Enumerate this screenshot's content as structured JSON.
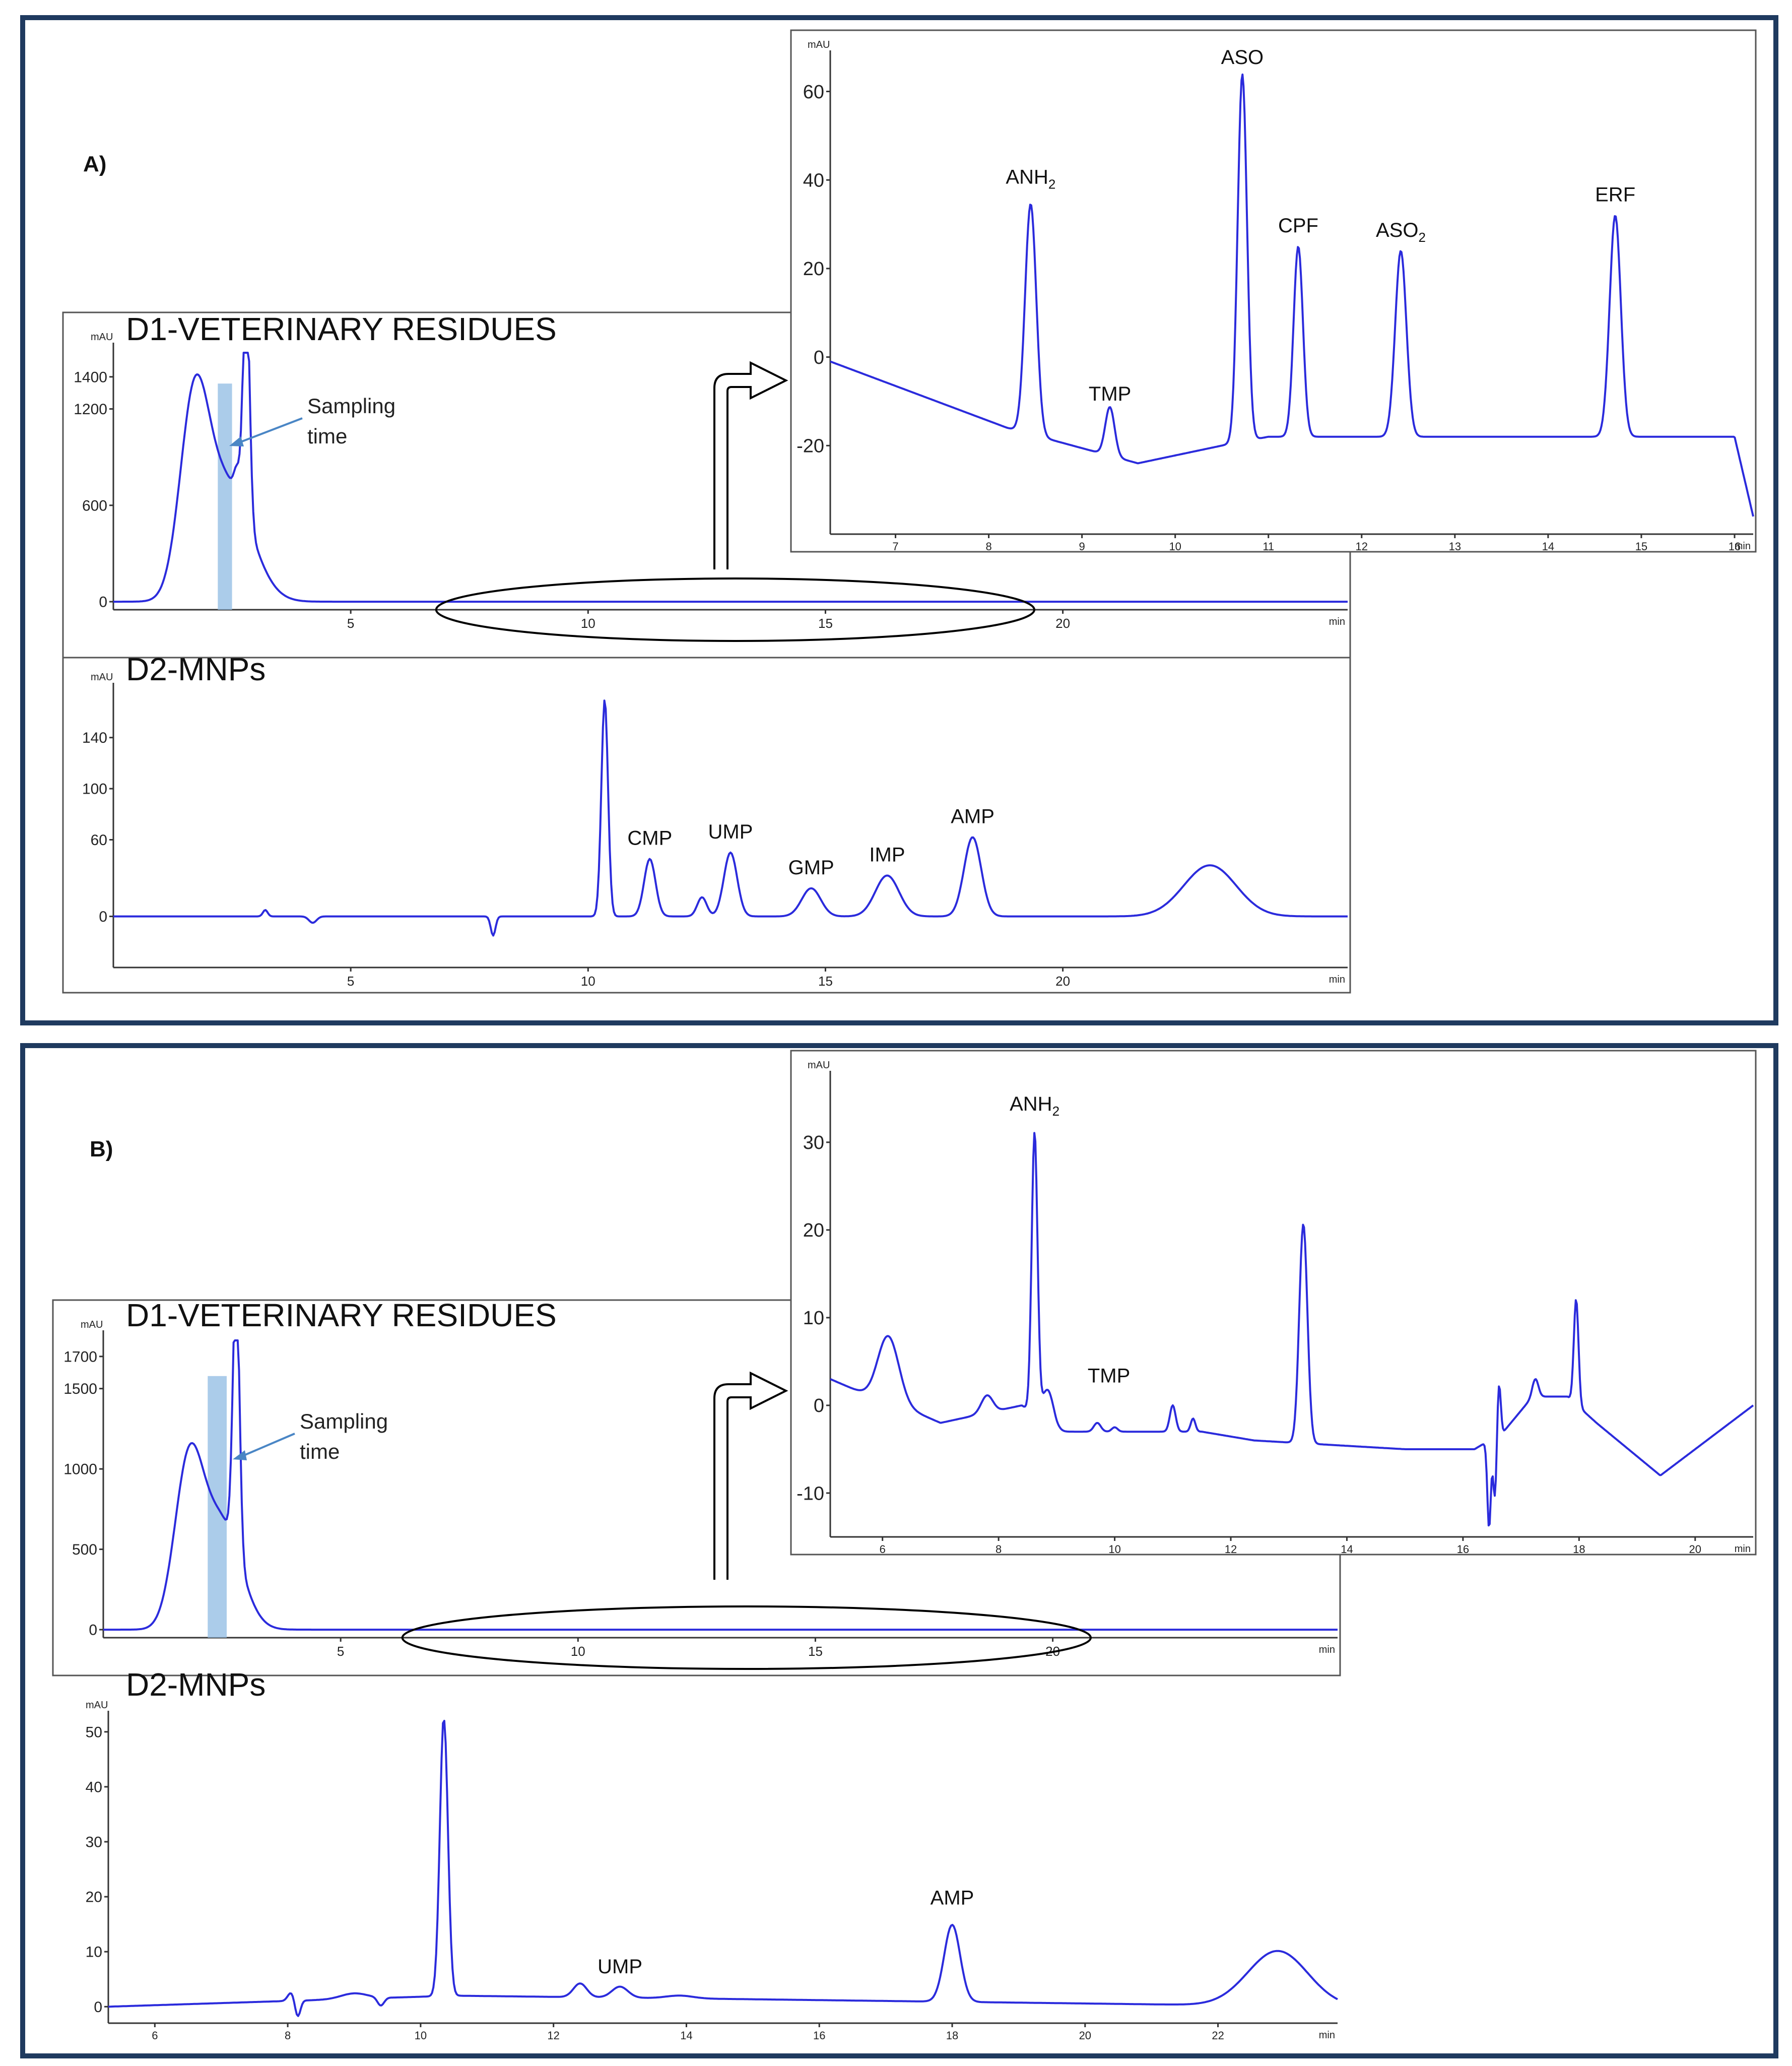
{
  "panels": {
    "a_label": "A)",
    "b_label": "B)"
  },
  "annotations": {
    "sampling_line1": "Sampling",
    "sampling_line2": "time"
  },
  "colors": {
    "trace": "#2b2bdc",
    "sampling_band": "#9cc3e6",
    "frame": "#1f3a5f"
  },
  "chart_data": [
    {
      "id": "A_D1",
      "type": "line",
      "title": "D1-VETERINARY RESIDUES",
      "y_unit": "mAU",
      "x_unit": "min",
      "xlim": [
        0,
        26
      ],
      "ylim": [
        -50,
        1550
      ],
      "xticks": [
        5,
        10,
        15,
        20
      ],
      "yticks": [
        0,
        600,
        1200,
        1400
      ],
      "peaks": [
        [
          1.7,
          1120,
          0.3
        ],
        [
          2.4,
          720,
          0.5
        ],
        [
          2.6,
          150,
          0.06
        ],
        [
          2.8,
          1480,
          0.07
        ]
      ],
      "baseline": [
        [
          0,
          0
        ],
        [
          26,
          0
        ]
      ],
      "sampling_band": [
        2.2,
        2.5
      ],
      "callout_x": [
        6.8,
        19.4
      ]
    },
    {
      "id": "A_D2",
      "type": "line",
      "title": "D2-MNPs",
      "y_unit": "mAU",
      "x_unit": "min",
      "xlim": [
        0,
        26
      ],
      "ylim": [
        -40,
        175
      ],
      "xticks": [
        5,
        10,
        15,
        20
      ],
      "yticks": [
        0,
        60,
        100,
        140
      ],
      "peaks": [
        [
          3.2,
          5,
          0.05
        ],
        [
          4.2,
          -5,
          0.08
        ],
        [
          8.0,
          -15,
          0.05
        ],
        [
          10.35,
          170,
          0.07
        ],
        [
          11.3,
          45,
          0.12
        ],
        [
          12.4,
          15,
          0.1
        ],
        [
          13.0,
          50,
          0.14
        ],
        [
          14.7,
          22,
          0.2
        ],
        [
          16.3,
          32,
          0.25
        ],
        [
          18.1,
          62,
          0.18
        ],
        [
          23.1,
          40,
          0.55
        ]
      ],
      "baseline": [
        [
          0,
          0
        ],
        [
          26,
          0
        ]
      ],
      "labels": [
        {
          "text": "CMP",
          "x": 11.3,
          "y": 45
        },
        {
          "text": "UMP",
          "x": 13.0,
          "y": 50
        },
        {
          "text": "GMP",
          "x": 14.7,
          "y": 22
        },
        {
          "text": "IMP",
          "x": 16.3,
          "y": 32
        },
        {
          "text": "AMP",
          "x": 18.1,
          "y": 62
        }
      ]
    },
    {
      "id": "A_zoom",
      "type": "line",
      "y_unit": "mAU",
      "x_unit": "min",
      "xlim": [
        6.3,
        16.2
      ],
      "ylim": [
        -40,
        67
      ],
      "xticks": [
        7,
        8,
        9,
        10,
        11,
        12,
        13,
        14,
        15,
        16
      ],
      "yticks": [
        -20,
        0,
        20,
        40,
        60
      ],
      "baseline": [
        [
          6.3,
          -1
        ],
        [
          8.2,
          -16
        ],
        [
          9.6,
          -24
        ],
        [
          10.5,
          -20
        ],
        [
          11.0,
          -18
        ],
        [
          16.0,
          -18
        ],
        [
          16.2,
          -36
        ]
      ],
      "peaks": [
        [
          8.45,
          52,
          0.06
        ],
        [
          9.3,
          11,
          0.05
        ],
        [
          10.72,
          83,
          0.05
        ],
        [
          11.32,
          43,
          0.05
        ],
        [
          12.42,
          42,
          0.06
        ],
        [
          14.72,
          50,
          0.06
        ]
      ],
      "labels": [
        {
          "text": "ANH",
          "sub": "2",
          "x": 8.45,
          "y": 36
        },
        {
          "text": "TMP",
          "x": 9.3,
          "y": -13
        },
        {
          "text": "ASO",
          "x": 10.72,
          "y": 63
        },
        {
          "text": "CPF",
          "x": 11.32,
          "y": 25
        },
        {
          "text": "ASO",
          "sub": "2",
          "x": 12.42,
          "y": 24
        },
        {
          "text": "ERF",
          "x": 14.72,
          "y": 32
        }
      ]
    },
    {
      "id": "B_D1",
      "type": "line",
      "title": "D1-VETERINARY RESIDUES",
      "y_unit": "mAU",
      "x_unit": "min",
      "xlim": [
        0,
        26
      ],
      "ylim": [
        -50,
        1800
      ],
      "xticks": [
        5,
        10,
        15,
        20
      ],
      "yticks": [
        0,
        500,
        1000,
        1500,
        1700
      ],
      "peaks": [
        [
          1.8,
          1000,
          0.3
        ],
        [
          2.5,
          650,
          0.4
        ],
        [
          2.8,
          1700,
          0.07
        ]
      ],
      "baseline": [
        [
          0,
          0
        ],
        [
          26,
          0
        ]
      ],
      "sampling_band": [
        2.2,
        2.6
      ],
      "callout_x": [
        6.3,
        20.8
      ]
    },
    {
      "id": "B_D2",
      "type": "line",
      "title": "D2-MNPs",
      "y_unit": "mAU",
      "x_unit": "min",
      "xlim": [
        5.3,
        23.8
      ],
      "ylim": [
        -3,
        52
      ],
      "xticks": [
        6,
        8,
        10,
        12,
        14,
        16,
        18,
        20,
        22
      ],
      "yticks": [
        0,
        10,
        20,
        30,
        40,
        50
      ],
      "baseline": [
        [
          5.3,
          0
        ],
        [
          10.5,
          2
        ],
        [
          14,
          1.5
        ],
        [
          23.8,
          0
        ]
      ],
      "peaks": [
        [
          8.05,
          1.5,
          0.05
        ],
        [
          8.15,
          -3,
          0.04
        ],
        [
          9.0,
          1,
          0.2
        ],
        [
          9.4,
          -1.5,
          0.05
        ],
        [
          10.35,
          51,
          0.06
        ],
        [
          12.4,
          2.5,
          0.1
        ],
        [
          13.0,
          2,
          0.12
        ],
        [
          13.9,
          0.5,
          0.2
        ],
        [
          18.0,
          14,
          0.12
        ],
        [
          22.9,
          10,
          0.45
        ]
      ],
      "labels": [
        {
          "text": "UMP",
          "x": 13.0,
          "y": 3.5
        },
        {
          "text": "AMP",
          "x": 18.0,
          "y": 16
        }
      ]
    },
    {
      "id": "B_zoom",
      "type": "line",
      "y_unit": "mAU",
      "x_unit": "min",
      "xlim": [
        5.1,
        21.0
      ],
      "ylim": [
        -15,
        37
      ],
      "xticks": [
        6,
        8,
        10,
        12,
        14,
        16,
        18,
        20
      ],
      "yticks": [
        -10,
        0,
        10,
        20,
        30
      ],
      "baseline": [
        [
          5.1,
          3
        ],
        [
          5.8,
          1
        ],
        [
          6.3,
          0
        ],
        [
          7.0,
          -2
        ],
        [
          8.4,
          0
        ],
        [
          9.0,
          -3
        ],
        [
          11.5,
          -3
        ],
        [
          12.4,
          -4
        ],
        [
          15.0,
          -5
        ],
        [
          16.2,
          -5
        ],
        [
          16.7,
          -3
        ],
        [
          17.2,
          1
        ],
        [
          17.8,
          1
        ],
        [
          18.3,
          -2
        ],
        [
          19.4,
          -8
        ],
        [
          21.0,
          0
        ]
      ],
      "peaks": [
        [
          6.1,
          7.5,
          0.18
        ],
        [
          7.8,
          2,
          0.1
        ],
        [
          8.62,
          32,
          0.05
        ],
        [
          8.85,
          4,
          0.1
        ],
        [
          9.7,
          1,
          0.06
        ],
        [
          10.0,
          0.5,
          0.05
        ],
        [
          11.0,
          3,
          0.05
        ],
        [
          11.35,
          1.5,
          0.04
        ],
        [
          13.25,
          25,
          0.07
        ],
        [
          16.45,
          -10,
          0.03
        ],
        [
          16.55,
          -7,
          0.03
        ],
        [
          16.62,
          6,
          0.03
        ],
        [
          17.25,
          2,
          0.05
        ],
        [
          17.95,
          12,
          0.04
        ]
      ],
      "labels": [
        {
          "text": "ANH",
          "sub": "2",
          "x": 8.62,
          "y": 32
        },
        {
          "text": "TMP",
          "x": 9.9,
          "y": 1
        }
      ]
    }
  ]
}
